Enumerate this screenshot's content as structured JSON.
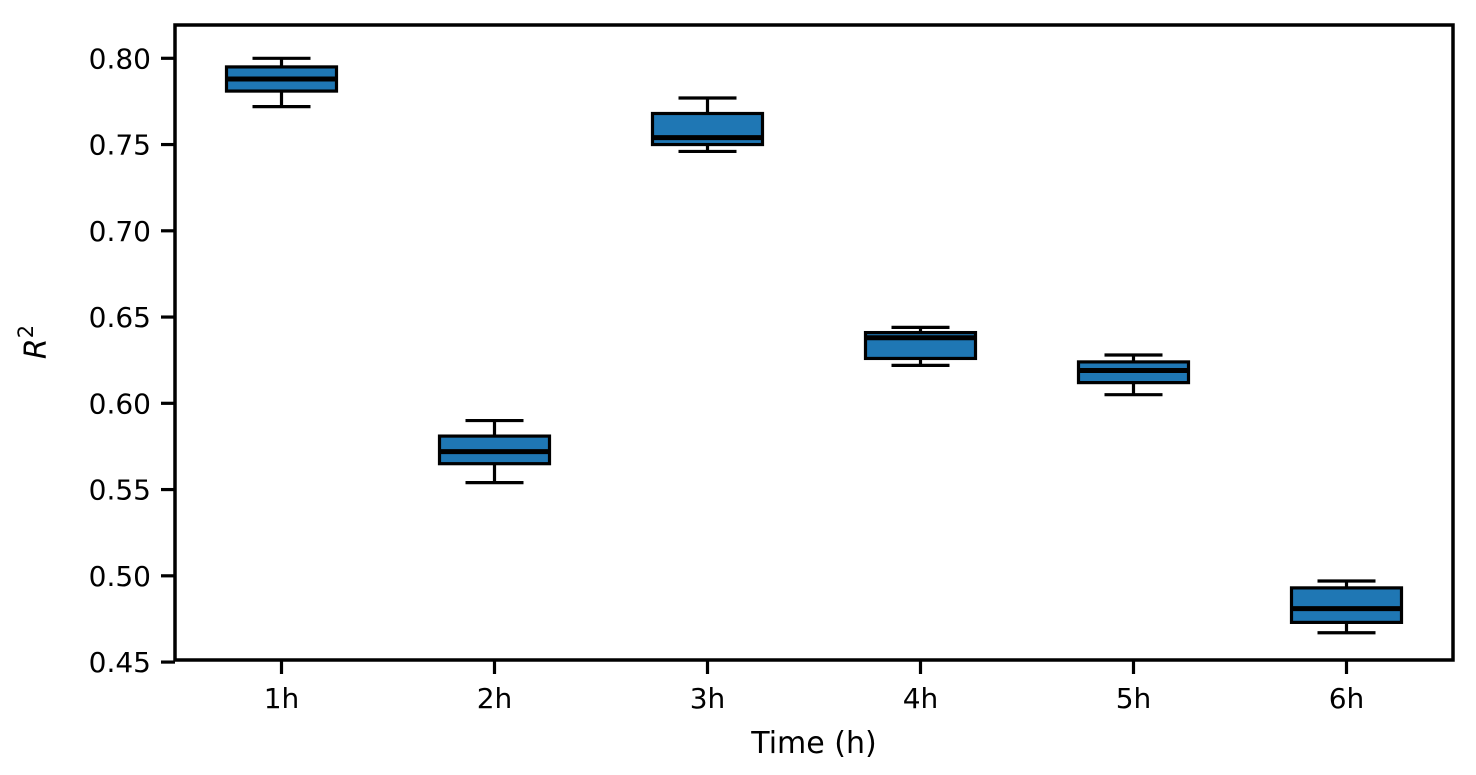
{
  "chart_data": {
    "type": "box",
    "title": "",
    "xlabel": "Time (h)",
    "ylabel": "R²",
    "ylabel_base": "R",
    "ylabel_superscript": "2",
    "categories": [
      "1h",
      "2h",
      "3h",
      "4h",
      "5h",
      "6h"
    ],
    "series": [
      {
        "label": "1h",
        "whislo": 0.772,
        "q1": 0.781,
        "med": 0.788,
        "q3": 0.795,
        "whishi": 0.8
      },
      {
        "label": "2h",
        "whislo": 0.554,
        "q1": 0.565,
        "med": 0.572,
        "q3": 0.581,
        "whishi": 0.59
      },
      {
        "label": "3h",
        "whislo": 0.746,
        "q1": 0.75,
        "med": 0.754,
        "q3": 0.768,
        "whishi": 0.777
      },
      {
        "label": "4h",
        "whislo": 0.622,
        "q1": 0.626,
        "med": 0.638,
        "q3": 0.641,
        "whishi": 0.644
      },
      {
        "label": "5h",
        "whislo": 0.605,
        "q1": 0.612,
        "med": 0.619,
        "q3": 0.624,
        "whishi": 0.628
      },
      {
        "label": "6h",
        "whislo": 0.467,
        "q1": 0.473,
        "med": 0.481,
        "q3": 0.493,
        "whishi": 0.497
      }
    ],
    "yticks": [
      0.45,
      0.5,
      0.55,
      0.6,
      0.65,
      0.7,
      0.75,
      0.8
    ],
    "ytick_labels": [
      "0.45",
      "0.50",
      "0.55",
      "0.60",
      "0.65",
      "0.70",
      "0.75",
      "0.80"
    ],
    "ylim": [
      0.4512,
      0.8193
    ],
    "grid": false,
    "legend": null,
    "colors": {
      "box_fill": "#1f77b4",
      "median": "#ff7f0e",
      "line": "#000000",
      "background": "#ffffff"
    }
  }
}
